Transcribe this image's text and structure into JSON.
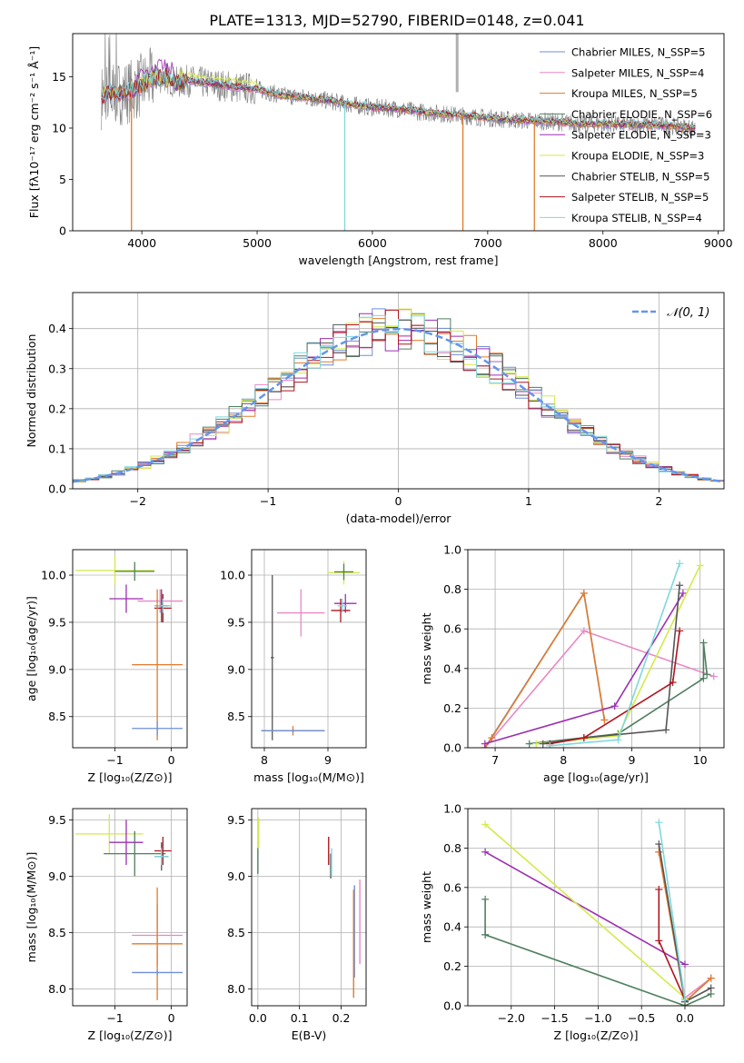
{
  "chart_data": [
    {
      "id": "spectrum",
      "type": "line",
      "title": "PLATE=1313, MJD=52790, FIBERID=0148, z=0.041",
      "xlabel": "wavelength [Angstrom, rest frame]",
      "ylabel": "Flux [fλ10⁻¹⁷ erg cm⁻² s⁻¹ Å⁻¹]",
      "xlim": [
        3400,
        9050
      ],
      "ylim": [
        0,
        19.2
      ],
      "xticks": [
        4000,
        5000,
        6000,
        7000,
        8000,
        9000
      ],
      "yticks": [
        0,
        5,
        10,
        15
      ],
      "grid": false,
      "legend_position": "top-right",
      "series": [
        {
          "name": "Chabrier MILES, N_SSP=5",
          "color": "#6e8fd6"
        },
        {
          "name": "Salpeter MILES, N_SSP=4",
          "color": "#e888c4"
        },
        {
          "name": "Kroupa MILES, N_SSP=5",
          "color": "#e07b2c"
        },
        {
          "name": "Chabrier ELODIE, N_SSP=6",
          "color": "#4f7f5f"
        },
        {
          "name": "Salpeter ELODIE, N_SSP=3",
          "color": "#9b2fb0"
        },
        {
          "name": "Kroupa ELODIE, N_SSP=3",
          "color": "#d4ea4a"
        },
        {
          "name": "Chabrier STELIB, N_SSP=5",
          "color": "#555555"
        },
        {
          "name": "Salpeter STELIB, N_SSP=5",
          "color": "#b0151f"
        },
        {
          "name": "Kroupa STELIB, N_SSP=4",
          "color": "#7fd8dc"
        }
      ],
      "data_color": "#808080",
      "continuum": {
        "x": [
          3650,
          3700,
          3800,
          3900,
          4000,
          4100,
          4200,
          4300,
          4400,
          4600,
          4800,
          5000,
          5200,
          5400,
          5600,
          5800,
          6000,
          6200,
          6400,
          6600,
          6800,
          7000,
          7200,
          7400,
          7600,
          7800,
          8000,
          8200,
          8400,
          8600,
          8800
        ],
        "y": [
          13.0,
          13.3,
          13.4,
          13.6,
          14.2,
          14.8,
          15.0,
          14.4,
          14.6,
          14.3,
          14.0,
          13.8,
          13.2,
          13.0,
          12.7,
          12.3,
          12.0,
          11.9,
          11.6,
          11.4,
          11.2,
          11.0,
          10.8,
          10.7,
          10.6,
          10.4,
          10.4,
          10.3,
          10.3,
          10.2,
          10.0
        ]
      },
      "drops": [
        {
          "x": 3910,
          "y": 0.0
        },
        {
          "x": 5760,
          "y": 0.0
        },
        {
          "x": 6785,
          "y": 0.0
        },
        {
          "x": 7405,
          "y": 0.0
        }
      ]
    },
    {
      "id": "residual-histogram",
      "type": "line",
      "xlabel": "(data-model)/error",
      "ylabel": "Normed distribution",
      "xlim": [
        -2.5,
        2.5
      ],
      "ylim": [
        0,
        0.49
      ],
      "xticks": [
        -2,
        -1,
        0,
        1,
        2
      ],
      "yticks": [
        0.0,
        0.1,
        0.2,
        0.3,
        0.4
      ],
      "grid": true,
      "legend_position": "top-right",
      "reference_curve": {
        "label": "𝒩(0, 1)",
        "mean": 0,
        "sd": 1,
        "color": "#6495ed"
      },
      "bin_width": 0.1
    },
    {
      "id": "age-vs-z",
      "type": "scatter",
      "xlabel": "Z [log₁₀(Z/Z⊙)]",
      "ylabel": "age  [log₁₀(age/yr)]",
      "xlim": [
        -1.75,
        0.28
      ],
      "ylim": [
        8.17,
        10.27
      ],
      "xticks": [
        -1,
        0
      ],
      "yticks": [
        8.5,
        9.0,
        9.5,
        10.0
      ],
      "grid": true,
      "crosses": [
        {
          "color": "#d4ea4a",
          "x": [
            -1.7,
            -0.3
          ],
          "y": [
            9.9,
            10.2
          ]
        },
        {
          "color": "#4f7f5f",
          "x": [
            -1.0,
            -0.3
          ],
          "y": [
            9.94,
            10.14
          ]
        },
        {
          "color": "#9b2fb0",
          "x": [
            -1.1,
            -0.5
          ],
          "y": [
            9.6,
            9.9
          ]
        },
        {
          "color": "#e888c4",
          "x": [
            -0.6,
            0.2
          ],
          "y": [
            9.6,
            9.85
          ]
        },
        {
          "color": "#555555",
          "x": [
            -0.3,
            -0.05
          ],
          "y": [
            9.5,
            9.85
          ]
        },
        {
          "color": "#b0151f",
          "x": [
            -0.3,
            0.0
          ],
          "y": [
            9.5,
            9.8
          ]
        },
        {
          "color": "#7fd8dc",
          "x": [
            -0.3,
            0.0
          ],
          "y": [
            9.6,
            9.75
          ]
        },
        {
          "color": "#e07b2c",
          "x": [
            -0.7,
            0.2
          ],
          "y": [
            8.25,
            9.85
          ]
        },
        {
          "color": "#6e8fd6",
          "x": [
            -0.7,
            0.2
          ],
          "y": [
            8.3,
            8.45
          ]
        }
      ]
    },
    {
      "id": "age-vs-mass",
      "type": "scatter",
      "xlabel": "mass [log₁₀(M/M⊙)]",
      "ylabel": "",
      "xlim": [
        7.8,
        9.6
      ],
      "ylim": [
        8.17,
        10.27
      ],
      "xticks": [
        8,
        9
      ],
      "yticks": [
        8.5,
        9.0,
        9.5,
        10.0
      ],
      "grid": true,
      "crosses": [
        {
          "color": "#555555",
          "x": [
            8.1,
            8.15
          ],
          "y": [
            8.25,
            10.0
          ]
        },
        {
          "color": "#e07b2c",
          "x": [
            7.95,
            8.95
          ],
          "y": [
            8.3,
            8.4
          ]
        },
        {
          "color": "#6e8fd6",
          "x": [
            7.95,
            8.95
          ],
          "y": [
            8.33,
            8.37
          ]
        },
        {
          "color": "#e888c4",
          "x": [
            8.2,
            8.95
          ],
          "y": [
            9.35,
            9.85
          ]
        },
        {
          "color": "#d4ea4a",
          "x": [
            9.0,
            9.5
          ],
          "y": [
            9.9,
            10.15
          ]
        },
        {
          "color": "#4f7f5f",
          "x": [
            9.1,
            9.4
          ],
          "y": [
            9.95,
            10.12
          ]
        },
        {
          "color": "#9b2fb0",
          "x": [
            9.1,
            9.45
          ],
          "y": [
            9.6,
            9.8
          ]
        },
        {
          "color": "#b0151f",
          "x": [
            9.05,
            9.35
          ],
          "y": [
            9.5,
            9.75
          ]
        },
        {
          "color": "#7fd8dc",
          "x": [
            9.15,
            9.3
          ],
          "y": [
            9.6,
            9.75
          ]
        }
      ]
    },
    {
      "id": "weight-vs-age",
      "type": "line",
      "xlabel": "age  [log₁₀(age/yr)]",
      "ylabel": "mass weight",
      "xlim": [
        6.6,
        10.35
      ],
      "ylim": [
        0,
        1.0
      ],
      "xticks": [
        7,
        8,
        9,
        10
      ],
      "yticks": [
        0.0,
        0.2,
        0.4,
        0.6,
        0.8,
        1.0
      ],
      "grid": true,
      "series": [
        {
          "color": "#6e8fd6",
          "x": [
            6.85,
            8.3,
            8.6
          ],
          "y": [
            0.0,
            0.78,
            0.14
          ]
        },
        {
          "color": "#e888c4",
          "x": [
            6.85,
            8.3,
            10.2
          ],
          "y": [
            0.0,
            0.59,
            0.36
          ]
        },
        {
          "color": "#e07b2c",
          "x": [
            6.85,
            6.95,
            8.3,
            8.6
          ],
          "y": [
            0.0,
            0.05,
            0.78,
            0.14
          ]
        },
        {
          "color": "#4f7f5f",
          "x": [
            7.5,
            8.8,
            10.05,
            10.05,
            10.1
          ],
          "y": [
            0.02,
            0.07,
            0.35,
            0.53,
            0.37
          ]
        },
        {
          "color": "#9b2fb0",
          "x": [
            6.85,
            8.75,
            9.75
          ],
          "y": [
            0.02,
            0.21,
            0.78
          ]
        },
        {
          "color": "#d4ea4a",
          "x": [
            7.6,
            8.8,
            10.0
          ],
          "y": [
            0.02,
            0.06,
            0.92
          ]
        },
        {
          "color": "#555555",
          "x": [
            7.7,
            8.3,
            9.5,
            9.7
          ],
          "y": [
            0.02,
            0.05,
            0.09,
            0.82
          ]
        },
        {
          "color": "#b0151f",
          "x": [
            7.8,
            8.3,
            9.6,
            9.7
          ],
          "y": [
            0.02,
            0.05,
            0.33,
            0.59
          ]
        },
        {
          "color": "#7fd8dc",
          "x": [
            7.8,
            8.8,
            9.7
          ],
          "y": [
            0.01,
            0.04,
            0.93
          ]
        }
      ]
    },
    {
      "id": "mass-vs-z",
      "type": "scatter",
      "xlabel": "Z [log₁₀(Z/Z⊙)]",
      "ylabel": "mass [log₁₀(M/M⊙)]",
      "xlim": [
        -1.75,
        0.28
      ],
      "ylim": [
        7.85,
        9.6
      ],
      "xticks": [
        -1,
        0
      ],
      "yticks": [
        8.0,
        8.5,
        9.0,
        9.5
      ],
      "grid": true,
      "crosses": [
        {
          "color": "#d4ea4a",
          "x": [
            -1.7,
            -0.5
          ],
          "y": [
            9.2,
            9.55
          ]
        },
        {
          "color": "#4f7f5f",
          "x": [
            -1.2,
            -0.1
          ],
          "y": [
            9.0,
            9.4
          ]
        },
        {
          "color": "#9b2fb0",
          "x": [
            -1.1,
            -0.5
          ],
          "y": [
            9.1,
            9.5
          ]
        },
        {
          "color": "#555555",
          "x": [
            -0.3,
            -0.05
          ],
          "y": [
            9.05,
            9.3
          ]
        },
        {
          "color": "#b0151f",
          "x": [
            -0.3,
            0.0
          ],
          "y": [
            9.1,
            9.35
          ]
        },
        {
          "color": "#7fd8dc",
          "x": [
            -0.3,
            -0.05
          ],
          "y": [
            9.1,
            9.25
          ]
        },
        {
          "color": "#e888c4",
          "x": [
            -0.7,
            0.2
          ],
          "y": [
            8.2,
            8.75
          ]
        },
        {
          "color": "#e07b2c",
          "x": [
            -0.7,
            0.2
          ],
          "y": [
            7.9,
            8.9
          ]
        },
        {
          "color": "#6e8fd6",
          "x": [
            -0.7,
            0.2
          ],
          "y": [
            8.12,
            8.17
          ]
        }
      ]
    },
    {
      "id": "mass-vs-ebv",
      "type": "scatter",
      "xlabel": "E(B-V)",
      "ylabel": "",
      "xlim": [
        -0.015,
        0.26
      ],
      "ylim": [
        7.85,
        9.6
      ],
      "xticks": [
        0.0,
        0.1,
        0.2
      ],
      "yticks": [
        8.0,
        8.5,
        9.0,
        9.5
      ],
      "grid": true,
      "segments": [
        {
          "color": "#4f7f5f",
          "x": 0.0,
          "y": [
            9.02,
            9.25
          ]
        },
        {
          "color": "#d4ea4a",
          "x": 0.002,
          "y": [
            9.25,
            9.52
          ]
        },
        {
          "color": "#b0151f",
          "x": 0.17,
          "y": [
            9.1,
            9.35
          ]
        },
        {
          "color": "#555555",
          "x": 0.175,
          "y": [
            8.98,
            9.2
          ]
        },
        {
          "color": "#7fd8dc",
          "x": 0.177,
          "y": [
            9.0,
            9.25
          ]
        },
        {
          "color": "#6e8fd6",
          "x": 0.232,
          "y": [
            8.1,
            8.92
          ]
        },
        {
          "color": "#e07b2c",
          "x": 0.23,
          "y": [
            7.92,
            8.88
          ]
        },
        {
          "color": "#e888c4",
          "x": 0.245,
          "y": [
            8.22,
            8.97
          ]
        }
      ]
    },
    {
      "id": "weight-vs-z",
      "type": "line",
      "xlabel": "Z [log₁₀(Z/Z⊙)]",
      "ylabel": "mass weight",
      "xlim": [
        -2.5,
        0.45
      ],
      "ylim": [
        0,
        1.0
      ],
      "xticks": [
        -2.0,
        -1.5,
        -1.0,
        -0.5,
        0.0
      ],
      "yticks": [
        0.0,
        0.2,
        0.4,
        0.6,
        0.8,
        1.0
      ],
      "grid": true,
      "series": [
        {
          "color": "#6e8fd6",
          "x": [
            0.0,
            0.3
          ],
          "y": [
            0.02,
            0.14
          ]
        },
        {
          "color": "#e888c4",
          "x": [
            -0.3,
            0.0,
            0.3
          ],
          "y": [
            0.78,
            0.04,
            0.14
          ]
        },
        {
          "color": "#e07b2c",
          "x": [
            -0.3,
            0.0,
            0.3
          ],
          "y": [
            0.78,
            0.02,
            0.14
          ]
        },
        {
          "color": "#4f7f5f",
          "x": [
            -2.3,
            -2.3,
            -2.3,
            0.0,
            0.3
          ],
          "y": [
            0.54,
            0.36,
            0.36,
            0.0,
            0.06
          ]
        },
        {
          "color": "#9b2fb0",
          "x": [
            -2.3,
            0.0
          ],
          "y": [
            0.78,
            0.21
          ]
        },
        {
          "color": "#d4ea4a",
          "x": [
            -2.3,
            0.0
          ],
          "y": [
            0.92,
            0.04
          ]
        },
        {
          "color": "#555555",
          "x": [
            -0.3,
            0.0,
            0.3
          ],
          "y": [
            0.82,
            0.02,
            0.09
          ]
        },
        {
          "color": "#b0151f",
          "x": [
            -0.3,
            -0.3,
            0.0
          ],
          "y": [
            0.59,
            0.33,
            0.03
          ]
        },
        {
          "color": "#7fd8dc",
          "x": [
            -0.3,
            0.0
          ],
          "y": [
            0.93,
            0.03
          ]
        }
      ]
    }
  ]
}
